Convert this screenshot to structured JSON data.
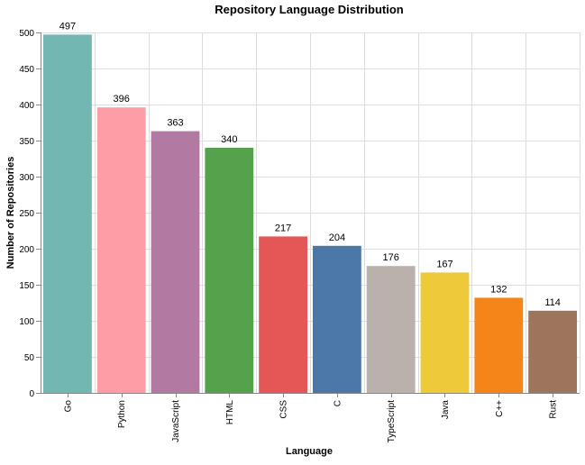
{
  "chart_data": {
    "type": "bar",
    "title": "Repository Language Distribution",
    "xlabel": "Language",
    "ylabel": "Number of Repositories",
    "categories": [
      "Go",
      "Python",
      "JavaScript",
      "HTML",
      "CSS",
      "C",
      "TypeScript",
      "Java",
      "C++",
      "Rust"
    ],
    "values": [
      497,
      396,
      363,
      340,
      217,
      204,
      176,
      167,
      132,
      114
    ],
    "colors": [
      "#72b7b2",
      "#ff9da6",
      "#b279a2",
      "#54a24b",
      "#e45756",
      "#4c78a8",
      "#bab0ac",
      "#eeca3b",
      "#f58518",
      "#9d755d"
    ],
    "ylim": [
      0,
      500
    ],
    "yticks": [
      0,
      50,
      100,
      150,
      200,
      250,
      300,
      350,
      400,
      450,
      500
    ],
    "grid": true,
    "legend": "none"
  }
}
